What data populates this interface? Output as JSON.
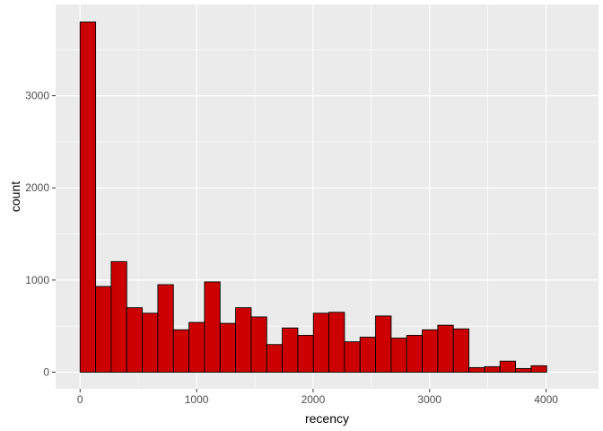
{
  "chart_data": {
    "type": "bar",
    "subtype": "histogram",
    "xlabel": "recency",
    "ylabel": "count",
    "xlim": [
      -210,
      4450
    ],
    "ylim": [
      -180,
      3990
    ],
    "xticks": [
      0,
      1000,
      2000,
      3000,
      4000
    ],
    "xtick_labels": [
      "0",
      "1000",
      "2000",
      "3000",
      "4000"
    ],
    "yticks": [
      0,
      1000,
      2000,
      3000
    ],
    "ytick_labels": [
      "0",
      "1000",
      "2000",
      "3000"
    ],
    "grid": true,
    "bin_width": 133.5,
    "bin_start": -133.5,
    "counts": [
      0,
      3800,
      930,
      1200,
      700,
      640,
      950,
      460,
      540,
      980,
      530,
      700,
      600,
      300,
      480,
      400,
      640,
      650,
      330,
      380,
      610,
      370,
      400,
      460,
      510,
      470,
      50,
      60,
      120,
      40,
      70,
      0,
      0
    ],
    "colors": {
      "panel": "#ebebeb",
      "grid_major": "#ffffff",
      "bar_fill": "#cc0000",
      "bar_outline": "#000000",
      "tick_label": "#4d4d4d",
      "axis_title": "#000000"
    }
  }
}
